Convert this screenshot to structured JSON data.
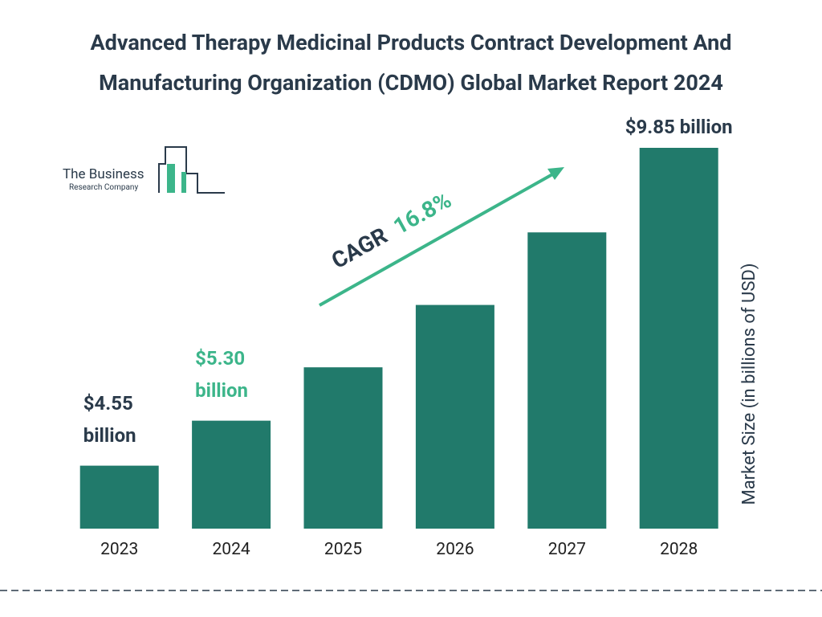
{
  "chart_data": {
    "type": "bar",
    "title": "Advanced Therapy Medicinal Products Contract Development And Manufacturing Organization (CDMO) Global Market Report 2024",
    "categories": [
      "2023",
      "2024",
      "2025",
      "2026",
      "2027",
      "2028"
    ],
    "values": [
      4.55,
      5.3,
      6.19,
      7.23,
      8.44,
      9.85
    ],
    "value_labels": [
      "$4.55 billion",
      "$5.30 billion",
      null,
      null,
      null,
      "$9.85 billion"
    ],
    "color": "#217a6b",
    "ylim": [
      3.5,
      9.85
    ],
    "y_axis_label": "Market Size (in billions of USD)",
    "cagr_label": "CAGR",
    "cagr_value": "16.8%",
    "logo_line1": "The Business",
    "logo_line2": "Research Company"
  }
}
